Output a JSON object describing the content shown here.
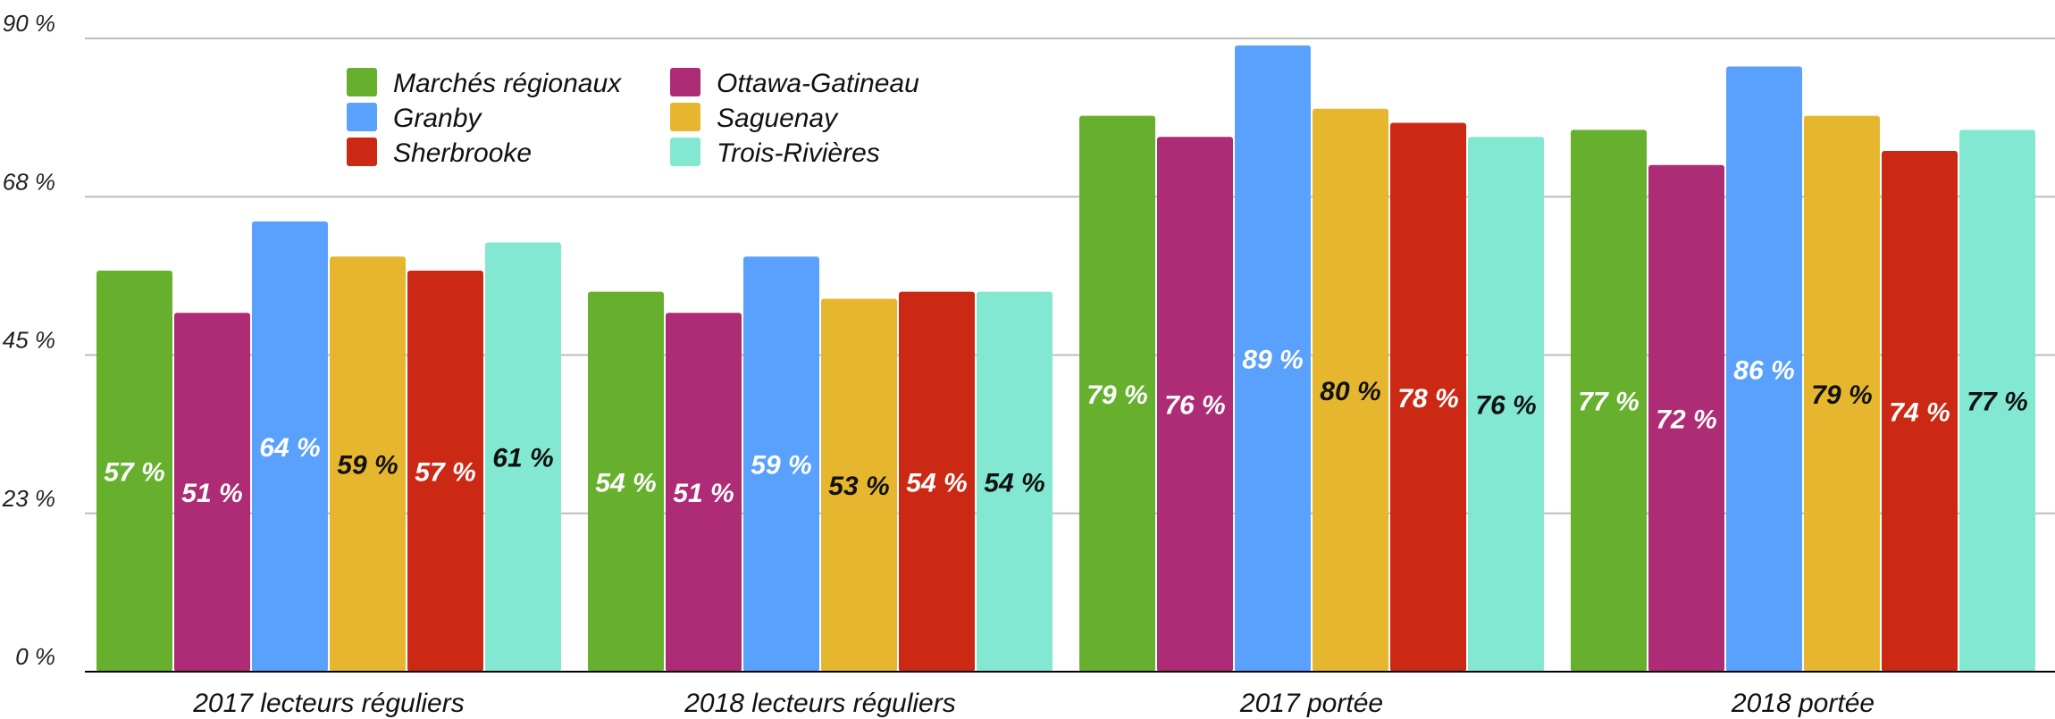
{
  "chart_data": {
    "type": "bar",
    "categories": [
      "2017 lecteurs réguliers",
      "2018 lecteurs réguliers",
      "2017 portée",
      "2018 portée"
    ],
    "series": [
      {
        "name": "Marchés régionaux",
        "color": "#66b02e",
        "label_color": "#ffffff",
        "values": [
          57,
          54,
          79,
          77
        ],
        "labels": [
          "57 %",
          "54 %",
          "79 %",
          "77 %"
        ]
      },
      {
        "name": "Ottawa-Gatineau",
        "color": "#ae2b75",
        "label_color": "#ffffff",
        "values": [
          51,
          51,
          76,
          72
        ],
        "labels": [
          "51 %",
          "51 %",
          "76 %",
          "72 %"
        ]
      },
      {
        "name": "Granby",
        "color": "#5aa1fd",
        "label_color": "#ffffff",
        "values": [
          64,
          59,
          89,
          86
        ],
        "labels": [
          "64 %",
          "59 %",
          "89 %",
          "86 %"
        ]
      },
      {
        "name": "Saguenay",
        "color": "#e6b72e",
        "label_color": "#111111",
        "values": [
          59,
          53,
          80,
          79
        ],
        "labels": [
          "59 %",
          "53 %",
          "80 %",
          "79 %"
        ]
      },
      {
        "name": "Sherbrooke",
        "color": "#cc2915",
        "label_color": "#ffffff",
        "values": [
          57,
          54,
          78,
          74
        ],
        "labels": [
          "57 %",
          "54 %",
          "78 %",
          "74 %"
        ]
      },
      {
        "name": "Trois-Rivières",
        "color": "#82e8d1",
        "label_color": "#111111",
        "values": [
          61,
          54,
          76,
          77
        ],
        "labels": [
          "61 %",
          "54 %",
          "76 %",
          "77 %"
        ]
      }
    ],
    "y_ticks": [
      0,
      22.5,
      45,
      67.5,
      90
    ],
    "y_tick_labels": [
      "0 %",
      "23 %",
      "45 %",
      "68 %",
      "90 %"
    ],
    "ylim": [
      0,
      90
    ],
    "grid": true,
    "legend_position": "top-left",
    "legend_order": [
      "Marchés régionaux",
      "Ottawa-Gatineau",
      "Granby",
      "Saguenay",
      "Sherbrooke",
      "Trois-Rivières"
    ]
  }
}
